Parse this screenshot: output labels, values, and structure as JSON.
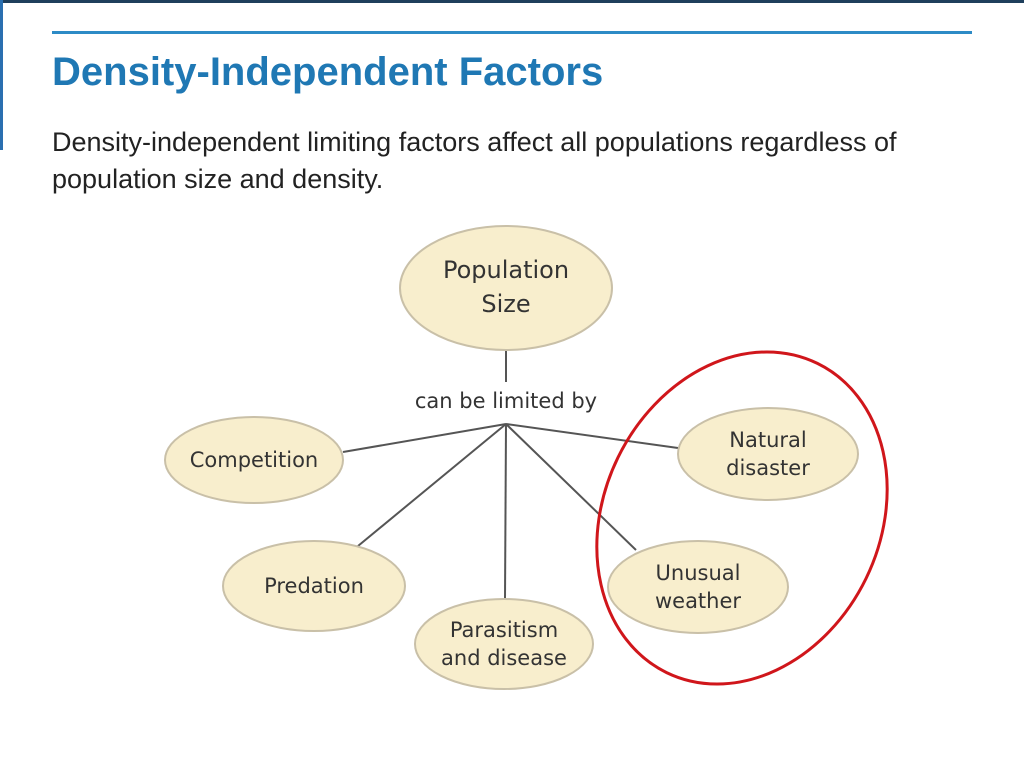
{
  "slide": {
    "title": "Density-Independent Factors",
    "body": "Density-independent limiting factors affect all populations regardless of population size and density."
  },
  "diagram": {
    "root": {
      "lines": [
        "Population",
        "Size"
      ]
    },
    "link_label": "can be limited by",
    "nodes": [
      {
        "id": "competition",
        "lines": [
          "Competition"
        ]
      },
      {
        "id": "predation",
        "lines": [
          "Predation"
        ]
      },
      {
        "id": "parasitism",
        "lines": [
          "Parasitism",
          "and disease"
        ]
      },
      {
        "id": "natural-disaster",
        "lines": [
          "Natural",
          "disaster"
        ]
      },
      {
        "id": "unusual-weather",
        "lines": [
          "Unusual",
          "weather"
        ]
      }
    ],
    "highlighted": [
      "natural-disaster",
      "unusual-weather"
    ],
    "colors": {
      "node_fill": "#f8eecd",
      "node_stroke": "#c9c0a8",
      "connector": "#555555",
      "highlight": "#d0161b",
      "title": "#1f78b4",
      "rule": "#2d8bc6"
    }
  }
}
